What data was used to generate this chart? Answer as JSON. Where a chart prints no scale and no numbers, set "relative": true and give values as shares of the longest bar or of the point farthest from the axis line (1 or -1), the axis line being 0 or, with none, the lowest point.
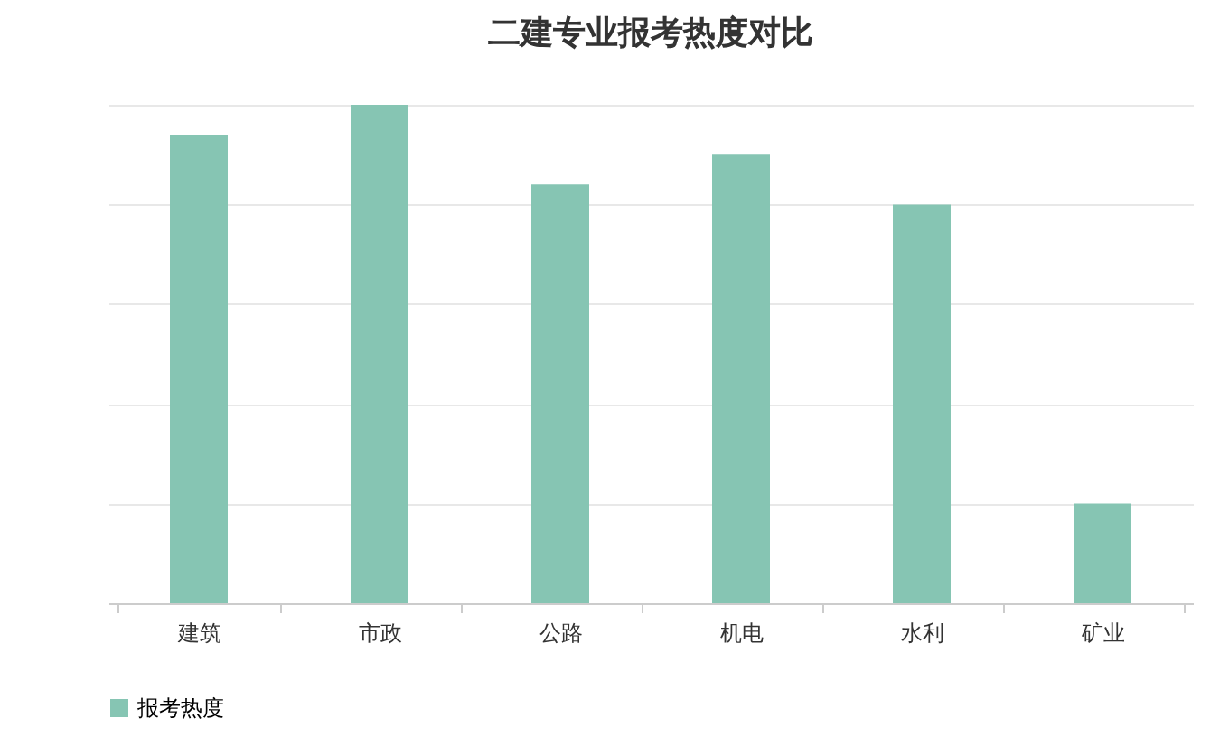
{
  "chart_data": {
    "type": "bar",
    "title": "二建专业报考热度对比",
    "categories": [
      "建筑",
      "市政",
      "公路",
      "机电",
      "水利",
      "矿业"
    ],
    "series": [
      {
        "name": "报考热度",
        "color": "#86c5b3",
        "values": [
          0.94,
          1,
          0.84,
          0.9,
          0.8,
          0.2
        ]
      }
    ],
    "relative": true,
    "grid": "y",
    "legend": "bottom"
  }
}
